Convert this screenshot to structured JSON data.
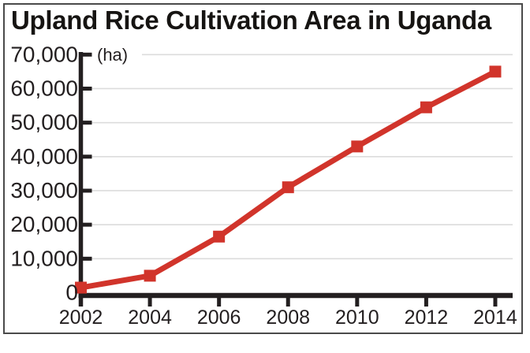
{
  "title": "Upland Rice Cultivation Area in Uganda",
  "colors": {
    "line": "#d1342b",
    "axis": "#231f20",
    "grid": "#dcdcdc",
    "text": "#231f20",
    "frame_border": "#4a4a4a",
    "background": "#ffffff"
  },
  "chart_data": {
    "type": "line",
    "title": "Upland Rice Cultivation Area in Uganda",
    "unit_label": "(ha)",
    "series_name": "Upland rice cultivation area",
    "x": [
      2002,
      2004,
      2006,
      2008,
      2010,
      2012,
      2014
    ],
    "values": [
      1500,
      5000,
      16500,
      31000,
      43000,
      54500,
      65000
    ],
    "xtick_labels": [
      "2002",
      "2004",
      "2006",
      "2008",
      "2010",
      "2012",
      "2014"
    ],
    "ytick_labels": [
      "0",
      "10,000",
      "20,000",
      "30,000",
      "40,000",
      "50,000",
      "60,000",
      "70,000"
    ],
    "ylim": [
      0,
      70000
    ],
    "ytick_interval": 10000,
    "grid": true,
    "legend_position": "none",
    "marker": "square",
    "line_color": "#d1342b",
    "xlabel": "",
    "ylabel": "(ha)"
  }
}
